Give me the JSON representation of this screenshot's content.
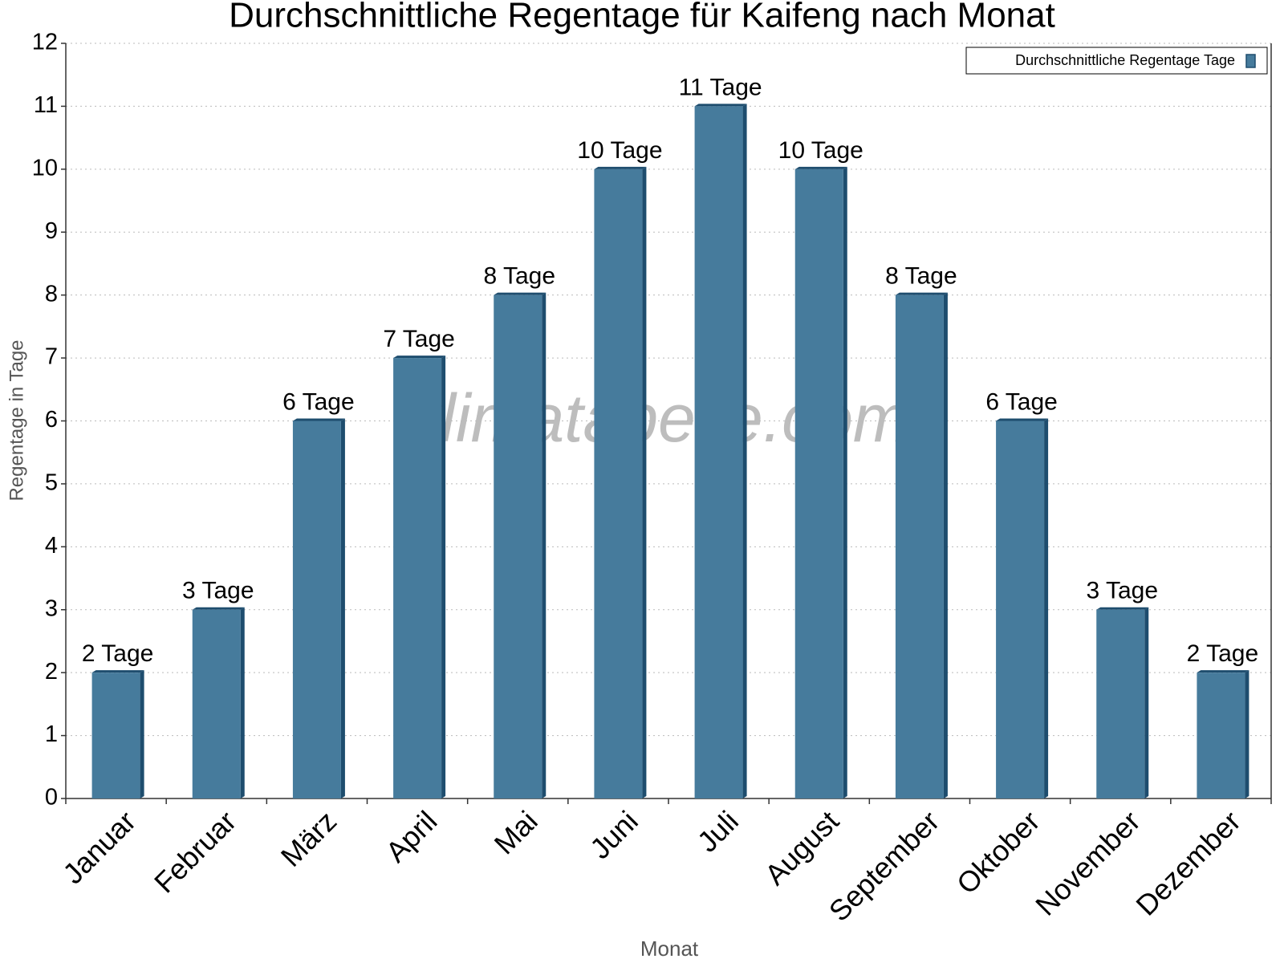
{
  "chart_data": {
    "type": "bar",
    "title": "Durchschnittliche Regentage für Kaifeng nach Monat",
    "xlabel": "Monat",
    "ylabel": "Regentage in Tage",
    "watermark": "klimatabelle.com",
    "categories": [
      "Januar",
      "Februar",
      "März",
      "April",
      "Mai",
      "Juni",
      "Juli",
      "August",
      "September",
      "Oktober",
      "November",
      "Dezember"
    ],
    "series": [
      {
        "name": "Durchschnittliche Regentage Tage",
        "color": "#467b9c",
        "values": [
          2,
          3,
          6,
          7,
          8,
          10,
          11,
          10,
          8,
          6,
          3,
          2
        ],
        "value_labels": [
          "2 Tage",
          "3 Tage",
          "6 Tage",
          "7 Tage",
          "8 Tage",
          "10 Tage",
          "11 Tage",
          "10 Tage",
          "8 Tage",
          "6 Tage",
          "3 Tage",
          "2 Tage"
        ]
      }
    ],
    "ylim": [
      0,
      12
    ],
    "yticks": [
      0,
      1,
      2,
      3,
      4,
      5,
      6,
      7,
      8,
      9,
      10,
      11,
      12
    ],
    "grid": true,
    "legend": "upper right"
  }
}
